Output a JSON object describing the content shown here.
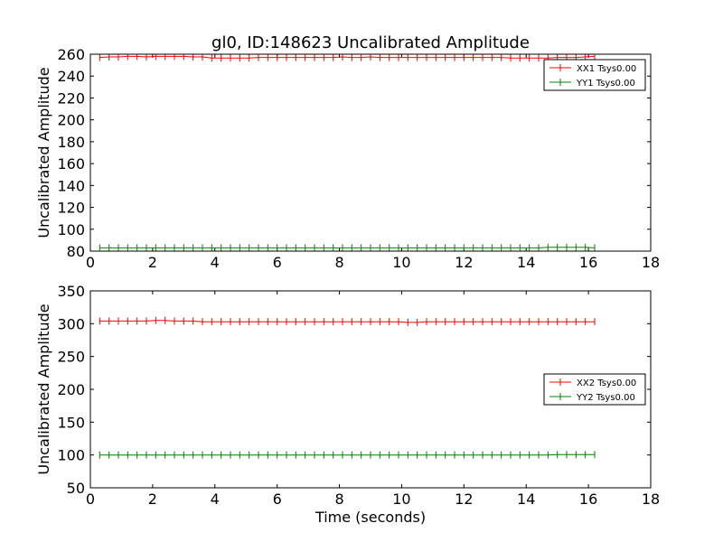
{
  "title": "gl0, ID:148623 Uncalibrated Amplitude",
  "chart_data": [
    {
      "type": "line",
      "ylabel": "Uncalibrated Amplitude",
      "xlabel": "",
      "xlim": [
        0,
        18
      ],
      "ylim": [
        80,
        260
      ],
      "xticks": [
        0,
        2,
        4,
        6,
        8,
        10,
        12,
        14,
        16,
        18
      ],
      "yticks": [
        80,
        100,
        120,
        140,
        160,
        180,
        200,
        220,
        240,
        260
      ],
      "legend_position": "top-right",
      "x": [
        0.3,
        0.6,
        0.9,
        1.2,
        1.5,
        1.8,
        2.1,
        2.4,
        2.7,
        3.0,
        3.3,
        3.6,
        3.9,
        4.2,
        4.5,
        4.8,
        5.1,
        5.4,
        5.7,
        6.0,
        6.3,
        6.6,
        6.9,
        7.2,
        7.5,
        7.8,
        8.1,
        8.4,
        8.7,
        9.0,
        9.3,
        9.6,
        9.9,
        10.2,
        10.5,
        10.8,
        11.1,
        11.4,
        11.7,
        12.0,
        12.3,
        12.6,
        12.9,
        13.2,
        13.5,
        13.8,
        14.1,
        14.4,
        14.7,
        15.0,
        15.3,
        15.6,
        15.9,
        16.2
      ],
      "series": [
        {
          "name": "XX1 Tsys0.00",
          "color": "#ff0000",
          "values": [
            257,
            257.5,
            257.5,
            258,
            258,
            257.5,
            258,
            258,
            258,
            258,
            257.5,
            257.5,
            256.5,
            256.5,
            256.5,
            256.5,
            256.5,
            257,
            257,
            257,
            257,
            257,
            257,
            257,
            257,
            257,
            257.5,
            257,
            257,
            257.5,
            257,
            257,
            257,
            257,
            257,
            257,
            257,
            257,
            257,
            257,
            257,
            257,
            257,
            257,
            256.5,
            256.5,
            256.5,
            256.5,
            256.5,
            257,
            257,
            257,
            257.5,
            258
          ]
        },
        {
          "name": "YY1 Tsys0.00",
          "color": "#008000",
          "values": [
            83,
            83,
            83,
            83,
            83,
            83,
            83,
            83,
            83,
            83,
            83,
            83,
            83,
            83,
            83,
            83,
            83,
            83,
            83,
            83,
            83,
            83,
            83,
            83,
            83,
            83,
            83,
            83,
            83,
            83,
            83,
            83,
            83,
            83,
            83,
            83,
            83,
            83,
            83,
            83,
            83,
            83,
            83,
            83,
            83,
            83,
            83,
            83,
            83.5,
            83.5,
            83.5,
            83.5,
            83.5,
            83
          ]
        }
      ]
    },
    {
      "type": "line",
      "ylabel": "Uncalibrated Amplitude",
      "xlabel": "Time (seconds)",
      "xlim": [
        0,
        18
      ],
      "ylim": [
        50,
        350
      ],
      "xticks": [
        0,
        2,
        4,
        6,
        8,
        10,
        12,
        14,
        16,
        18
      ],
      "yticks": [
        50,
        100,
        150,
        200,
        250,
        300,
        350
      ],
      "legend_position": "center-right",
      "x": [
        0.3,
        0.6,
        0.9,
        1.2,
        1.5,
        1.8,
        2.1,
        2.4,
        2.7,
        3.0,
        3.3,
        3.6,
        3.9,
        4.2,
        4.5,
        4.8,
        5.1,
        5.4,
        5.7,
        6.0,
        6.3,
        6.6,
        6.9,
        7.2,
        7.5,
        7.8,
        8.1,
        8.4,
        8.7,
        9.0,
        9.3,
        9.6,
        9.9,
        10.2,
        10.5,
        10.8,
        11.1,
        11.4,
        11.7,
        12.0,
        12.3,
        12.6,
        12.9,
        13.2,
        13.5,
        13.8,
        14.1,
        14.4,
        14.7,
        15.0,
        15.3,
        15.6,
        15.9,
        16.2
      ],
      "series": [
        {
          "name": "XX2 Tsys0.00",
          "color": "#ff0000",
          "values": [
            304,
            304,
            304,
            304,
            304,
            304,
            305,
            305,
            304,
            304,
            304,
            303,
            303,
            303,
            303,
            303,
            303,
            303,
            303,
            303,
            303,
            303,
            303,
            303,
            303,
            303,
            303,
            303,
            303,
            303,
            303,
            303,
            303,
            302,
            302,
            303,
            303,
            303,
            303,
            303,
            303,
            303,
            303,
            303,
            303,
            303,
            303,
            303,
            303,
            303,
            303,
            303,
            303,
            303
          ]
        },
        {
          "name": "YY2 Tsys0.00",
          "color": "#008000",
          "values": [
            100,
            100,
            100,
            100,
            100,
            100,
            100,
            100,
            100,
            100,
            100,
            100,
            100,
            100,
            100,
            100,
            100,
            100,
            100,
            100,
            100,
            100,
            100,
            100,
            100,
            100,
            100,
            100,
            100,
            100,
            100,
            100,
            100,
            100,
            100,
            100,
            100,
            100,
            100,
            100,
            100,
            100,
            100,
            100,
            100,
            100,
            100,
            100,
            100,
            100.5,
            100.5,
            100.5,
            100.5,
            100.5
          ]
        }
      ]
    }
  ]
}
